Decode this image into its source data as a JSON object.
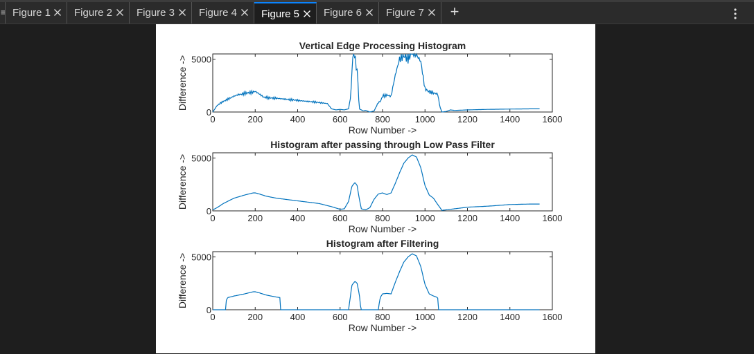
{
  "tabs": [
    {
      "label": "Figure 1",
      "active": false
    },
    {
      "label": "Figure 2",
      "active": false
    },
    {
      "label": "Figure 3",
      "active": false
    },
    {
      "label": "Figure 4",
      "active": false
    },
    {
      "label": "Figure 5",
      "active": true
    },
    {
      "label": "Figure 6",
      "active": false
    },
    {
      "label": "Figure 7",
      "active": false
    }
  ],
  "icons": {
    "tab_close": "close-icon",
    "new_tab": "plus-icon",
    "menu": "vertical-ellipsis-icon",
    "grip": "drag-handle-icon"
  },
  "add_tab_label": "+",
  "colors": {
    "background": "#1e1e1e",
    "tabbar": "#2b2b2b",
    "active_tab_accent": "#0a84ff",
    "series": "#0072bd",
    "figure_bg": "#ffffff"
  },
  "chart_data": [
    {
      "type": "line",
      "title": "Vertical Edge Processing Histogram",
      "xlabel": "Row Number ->",
      "ylabel": "Difference ->",
      "xlim": [
        0,
        1600
      ],
      "ylim": [
        0,
        5500
      ],
      "xticks": [
        0,
        200,
        400,
        600,
        800,
        1000,
        1200,
        1400,
        1600
      ],
      "xtick_labels": [
        "0",
        "200",
        "400",
        "600",
        "800",
        "1000",
        "1200",
        "1400",
        "1600"
      ],
      "yticks": [
        0,
        5000
      ],
      "ytick_labels": [
        "0",
        "5000"
      ],
      "grid": false,
      "noisy": true,
      "series": [
        {
          "x": [
            0,
            10,
            20,
            40,
            60,
            80,
            100,
            120,
            140,
            160,
            180,
            200,
            220,
            240,
            260,
            300,
            350,
            400,
            450,
            500,
            540,
            560,
            580,
            600,
            620,
            640,
            650,
            660,
            670,
            675,
            680,
            685,
            690,
            700,
            710,
            720,
            740,
            760,
            780,
            790,
            800,
            820,
            840,
            860,
            880,
            900,
            920,
            940,
            960,
            980,
            1000,
            1020,
            1040,
            1060,
            1070,
            1080,
            1100,
            1120,
            1140,
            1200,
            1300,
            1400,
            1500,
            1540
          ],
          "y": [
            0,
            300,
            600,
            900,
            1100,
            1300,
            1500,
            1650,
            1700,
            1800,
            1850,
            1950,
            1700,
            1400,
            1350,
            1300,
            1200,
            1100,
            1000,
            900,
            800,
            300,
            200,
            250,
            200,
            300,
            1500,
            5400,
            5500,
            4200,
            4000,
            2500,
            300,
            200,
            100,
            150,
            0,
            100,
            900,
            1000,
            1500,
            1600,
            1500,
            3500,
            5000,
            5300,
            5100,
            5600,
            5400,
            4800,
            2200,
            1900,
            1800,
            1700,
            500,
            0,
            50,
            200,
            150,
            200,
            250,
            280,
            300,
            300
          ]
        }
      ]
    },
    {
      "type": "line",
      "title": "Histogram after passing through Low Pass Filter",
      "xlabel": "Row Number ->",
      "ylabel": "Difference ->",
      "xlim": [
        0,
        1600
      ],
      "ylim": [
        0,
        5500
      ],
      "xticks": [
        0,
        200,
        400,
        600,
        800,
        1000,
        1200,
        1400,
        1600
      ],
      "xtick_labels": [
        "0",
        "200",
        "400",
        "600",
        "800",
        "1000",
        "1200",
        "1400",
        "1600"
      ],
      "yticks": [
        0,
        5000
      ],
      "ytick_labels": [
        "0",
        "5000"
      ],
      "grid": false,
      "noisy": false,
      "series": [
        {
          "x": [
            0,
            20,
            50,
            100,
            150,
            190,
            200,
            220,
            250,
            300,
            400,
            500,
            560,
            600,
            620,
            640,
            655,
            670,
            680,
            690,
            700,
            720,
            740,
            760,
            780,
            800,
            820,
            840,
            860,
            880,
            900,
            920,
            940,
            960,
            980,
            1000,
            1020,
            1040,
            1060,
            1080,
            1100,
            1200,
            1300,
            1400,
            1500,
            1540
          ],
          "y": [
            100,
            300,
            700,
            1200,
            1500,
            1700,
            1700,
            1600,
            1400,
            1200,
            950,
            700,
            400,
            150,
            200,
            900,
            2300,
            2700,
            2400,
            1200,
            200,
            100,
            300,
            1100,
            1600,
            1700,
            1550,
            1700,
            2600,
            3600,
            4500,
            5000,
            5300,
            5100,
            4100,
            2400,
            1500,
            1200,
            600,
            50,
            100,
            350,
            450,
            600,
            650,
            650
          ]
        }
      ]
    },
    {
      "type": "line",
      "title": "Histogram after Filtering",
      "xlabel": "Row Number ->",
      "ylabel": "Difference ->",
      "xlim": [
        0,
        1600
      ],
      "ylim": [
        0,
        5500
      ],
      "xticks": [
        0,
        200,
        400,
        600,
        800,
        1000,
        1200,
        1400,
        1600
      ],
      "xtick_labels": [
        "0",
        "200",
        "400",
        "600",
        "800",
        "1000",
        "1200",
        "1400",
        "1600"
      ],
      "yticks": [
        0,
        5000
      ],
      "ytick_labels": [
        "0",
        "5000"
      ],
      "grid": false,
      "noisy": false,
      "series": [
        {
          "x": [
            0,
            60,
            62,
            70,
            100,
            150,
            190,
            200,
            220,
            250,
            300,
            318,
            320,
            640,
            650,
            655,
            670,
            680,
            690,
            695,
            697,
            700,
            780,
            785,
            790,
            800,
            820,
            840,
            860,
            880,
            900,
            920,
            940,
            960,
            980,
            1000,
            1020,
            1040,
            1055,
            1060,
            1062,
            1540
          ],
          "y": [
            0,
            0,
            800,
            1150,
            1300,
            1500,
            1700,
            1700,
            1600,
            1400,
            1200,
            1150,
            0,
            0,
            1500,
            2300,
            2700,
            2500,
            1500,
            800,
            0,
            0,
            0,
            700,
            1200,
            1500,
            1550,
            1500,
            2600,
            3600,
            4500,
            5000,
            5300,
            5100,
            4100,
            2400,
            1500,
            1300,
            1200,
            1100,
            0,
            0
          ]
        }
      ]
    }
  ]
}
